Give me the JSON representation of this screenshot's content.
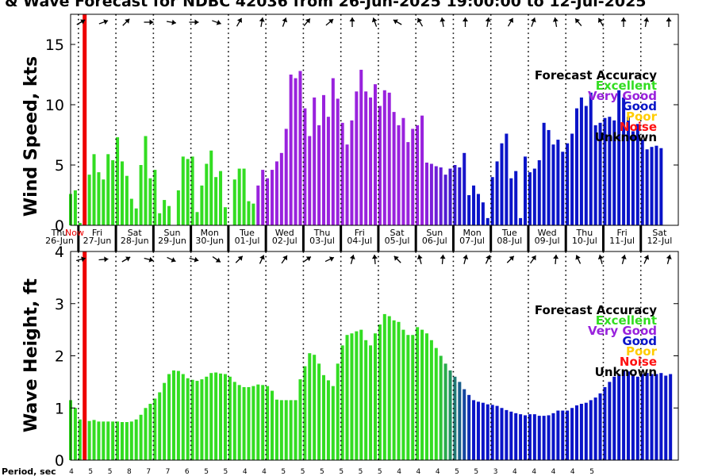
{
  "title": "& Wave Forecast for NDBC 42036 from 26-Jun-2025 19:00:00 to 12-Jul-2025",
  "now_label": "Now",
  "colors": {
    "excellent": "#33dd22",
    "very_good": "#9922dd",
    "good": "#0a14c8",
    "poor": "#ffcc00",
    "noise": "#ff1111",
    "unknown": "#000000",
    "now_line": "#ee0000"
  },
  "days": [
    {
      "dow": "Thu",
      "date": "26-Jun"
    },
    {
      "dow": "Fri",
      "date": "27-Jun"
    },
    {
      "dow": "Sat",
      "date": "28-Jun"
    },
    {
      "dow": "Sun",
      "date": "29-Jun"
    },
    {
      "dow": "Mon",
      "date": "30-Jun"
    },
    {
      "dow": "Tue",
      "date": "01-Jul"
    },
    {
      "dow": "Wed",
      "date": "02-Jul"
    },
    {
      "dow": "Thu",
      "date": "03-Jul"
    },
    {
      "dow": "Fri",
      "date": "04-Jul"
    },
    {
      "dow": "Sat",
      "date": "05-Jul"
    },
    {
      "dow": "Sun",
      "date": "06-Jul"
    },
    {
      "dow": "Mon",
      "date": "07-Jul"
    },
    {
      "dow": "Tue",
      "date": "08-Jul"
    },
    {
      "dow": "Wed",
      "date": "09-Jul"
    },
    {
      "dow": "Thu",
      "date": "10-Jul"
    },
    {
      "dow": "Fri",
      "date": "11-Jul"
    },
    {
      "dow": "Sat",
      "date": "12-Jul"
    }
  ],
  "legend": {
    "title": "Forecast Accuracy",
    "items": [
      {
        "label": "Excellent",
        "color": "#33dd22"
      },
      {
        "label": "Very Good",
        "color": "#9922dd"
      },
      {
        "label": "Good",
        "color": "#0a14c8"
      },
      {
        "label": "Poor",
        "color": "#ffcc00"
      },
      {
        "label": "Noise",
        "color": "#ff1111"
      },
      {
        "label": "Unknown",
        "color": "#000000"
      }
    ]
  },
  "period_label": "Period, sec",
  "period_values": [
    "4",
    "5",
    "5",
    "8",
    "7",
    "7",
    "6",
    "5",
    "5",
    "4",
    "4",
    "5",
    "5",
    "5",
    "5",
    "5",
    "5",
    "4",
    "4",
    "4",
    "5",
    "5",
    "3",
    "4",
    "4",
    "4",
    "4",
    "5"
  ],
  "chart_data": [
    {
      "type": "bar",
      "ylabel": "Wind Speed, kts",
      "ylim": [
        0,
        17.5
      ],
      "yticks": [
        0,
        5,
        10,
        15
      ],
      "x_unit": "hours after 26-Jun-2025 19:00",
      "bar_interval_hours": 3,
      "grid": "dotted vertical at day boundaries",
      "values": [
        2.6,
        2.9,
        0.2,
        4.8,
        4.2,
        5.9,
        4.4,
        3.8,
        5.9,
        5.4,
        7.3,
        5.3,
        4.1,
        2.2,
        1.4,
        5.0,
        7.4,
        3.9,
        4.6,
        1.0,
        2.1,
        1.6,
        0,
        2.9,
        5.7,
        5.5,
        5.7,
        1.1,
        3.3,
        5.1,
        6.2,
        4.0,
        4.5,
        1.5,
        0,
        3.8,
        4.7,
        4.7,
        2.0,
        1.8,
        3.3,
        4.6,
        3.9,
        4.6,
        5.3,
        6.0,
        8.0,
        12.5,
        12.2,
        12.8,
        9.7,
        7.4,
        10.6,
        8.3,
        10.8,
        9.0,
        12.2,
        10.5,
        8.5,
        6.7,
        8.7,
        11.1,
        12.9,
        11.1,
        10.6,
        11.7,
        9.9,
        11.2,
        11.0,
        9.4,
        8.3,
        8.9,
        6.9,
        8.0,
        8.3,
        9.1,
        5.2,
        5.1,
        4.9,
        4.8,
        4.2,
        4.7,
        5.0,
        4.8,
        6.0,
        2.5,
        3.3,
        2.6,
        1.9,
        0.6,
        4.0,
        5.3,
        6.8,
        7.6,
        3.9,
        4.5,
        0.6,
        5.7,
        4.4,
        4.7,
        5.4,
        8.5,
        7.9,
        6.7,
        7.1,
        6.1,
        6.8,
        7.6,
        9.7,
        10.6,
        9.9,
        11.0,
        8.3,
        8.5,
        8.9,
        9.0,
        8.7,
        11.2,
        10.6,
        9.0,
        7.8,
        8.4,
        7.1,
        6.3,
        6.5,
        6.6,
        6.4
      ],
      "color_bands": [
        {
          "from": 0,
          "to": 40,
          "accuracy": "Excellent"
        },
        {
          "from": 40,
          "to": 75,
          "accuracy": "Very Good"
        },
        {
          "from": 75,
          "to": 85,
          "accuracy": "Very Good to Good"
        },
        {
          "from": 85,
          "to": 130,
          "accuracy": "Good"
        }
      ]
    },
    {
      "type": "bar",
      "ylabel": "Wave Height, ft",
      "ylim": [
        0,
        4
      ],
      "yticks": [
        0,
        1,
        2,
        3,
        4
      ],
      "x_unit": "hours after 26-Jun-2025 19:00",
      "bar_interval_hours": 3,
      "grid": "dotted vertical at day boundaries",
      "values": [
        1.15,
        1.0,
        0.78,
        0.75,
        0.75,
        0.77,
        0.74,
        0.74,
        0.74,
        0.74,
        0.74,
        0.73,
        0.73,
        0.74,
        0.78,
        0.87,
        1.0,
        1.08,
        1.18,
        1.3,
        1.48,
        1.65,
        1.72,
        1.71,
        1.65,
        1.57,
        1.54,
        1.52,
        1.55,
        1.6,
        1.67,
        1.68,
        1.66,
        1.65,
        1.6,
        1.5,
        1.44,
        1.4,
        1.4,
        1.42,
        1.45,
        1.44,
        1.42,
        1.33,
        1.16,
        1.15,
        1.15,
        1.15,
        1.15,
        1.55,
        1.8,
        2.05,
        2.02,
        1.85,
        1.63,
        1.53,
        1.42,
        1.85,
        2.2,
        2.4,
        2.43,
        2.47,
        2.5,
        2.3,
        2.2,
        2.43,
        2.6,
        2.8,
        2.76,
        2.68,
        2.65,
        2.5,
        2.4,
        2.4,
        2.55,
        2.5,
        2.43,
        2.3,
        2.15,
        2.0,
        1.85,
        1.72,
        1.6,
        1.5,
        1.36,
        1.25,
        1.15,
        1.12,
        1.1,
        1.07,
        1.06,
        1.04,
        1.0,
        0.96,
        0.93,
        0.9,
        0.88,
        0.86,
        0.88,
        0.88,
        0.85,
        0.85,
        0.86,
        0.9,
        0.95,
        0.95,
        0.95,
        1.0,
        1.05,
        1.08,
        1.1,
        1.15,
        1.2,
        1.28,
        1.4,
        1.5,
        1.6,
        1.65,
        1.72,
        1.7,
        1.65,
        1.6,
        1.65,
        1.67,
        1.65,
        1.65,
        1.67,
        1.62,
        1.65
      ],
      "color_bands": [
        {
          "from": 0,
          "to": 78,
          "accuracy": "Excellent"
        },
        {
          "from": 78,
          "to": 86,
          "accuracy": "Excellent to Good"
        },
        {
          "from": 86,
          "to": 130,
          "accuracy": "Good"
        }
      ]
    }
  ]
}
